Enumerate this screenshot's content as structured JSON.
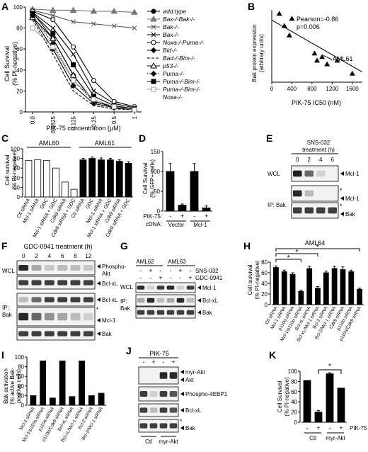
{
  "panels": {
    "A": {
      "letter": "A",
      "ylabel": "Cell Survival",
      "ylabel2": "(% PI-negative)",
      "xlabel": "PIK-75 concentration (µM)",
      "yticks": [
        "0",
        "20",
        "40",
        "60",
        "80",
        "100"
      ],
      "xticks": [
        "0.0",
        "0.0625",
        "0.125",
        "0.25",
        "0.5",
        "1"
      ],
      "legend": [
        "wild type",
        "Bax-/-Bak-/-",
        "Bak-/-",
        "Bax-/-",
        "Noxa-/-Puma-/-",
        "Bid-/-",
        "Bad-/-Bim-/-",
        "p53-/-",
        "Puma-/-",
        "Puma-/-Bim-/-",
        "Puma-/-Bim-/-",
        "Noxa-/-"
      ]
    },
    "B": {
      "letter": "B",
      "ylabel": "Bak protein expression",
      "ylabel2": "(arbitrary units)",
      "xlabel": "PIK-75 IC50 (nM)",
      "annot1": "Pearson=-0.86",
      "annot2": "p=0.006",
      "callout": "AML61",
      "xticks": [
        "0",
        "400",
        "800",
        "1200",
        "1600"
      ]
    },
    "C": {
      "letter": "C",
      "ylabel": "Cell survival",
      "ylabel2": "(% PI-negative)",
      "group1": "AML60",
      "group2": "AML61",
      "yticks": [
        "0",
        "20",
        "40",
        "60",
        "80",
        "100"
      ],
      "cats": [
        "Ctl siRNA",
        "Mcl-1 siRNA",
        "GDC",
        "Mcl-1 siRNA + GDC",
        "Cdk9 siRNA",
        "Cdk9 siRNA + GDC",
        "Ctl siRNA",
        "GDC",
        "Mcl-1 siRNA",
        "Mcl-1 siRNA + GDC",
        "Cdk9 siRNA",
        "Cdk9 siRNA + GDC"
      ]
    },
    "D": {
      "letter": "D",
      "ylabel": "Cell Survival",
      "ylabel2": "(% GFP+ cells)",
      "yticks": [
        "0",
        "50",
        "100",
        "150"
      ],
      "row1label": "PIK-75:",
      "row2label": "cDNA:",
      "signs": [
        "-",
        "+",
        "-",
        "+"
      ],
      "cdna": [
        "Vector",
        "Mcl-1"
      ]
    },
    "E": {
      "letter": "E",
      "treat": "SNS-032",
      "treat2": "treatment (h)",
      "times": [
        "0",
        "2",
        "4",
        "6"
      ],
      "wcl": "WCL",
      "ip": "IP: Bak",
      "bands": [
        "Mcl-1",
        "Mcl-1",
        "Bak"
      ],
      "star": "*"
    },
    "F": {
      "letter": "F",
      "treat": "GDC-0941 treatment (h)",
      "times": [
        "0",
        "2",
        "4",
        "6",
        "8",
        "12"
      ],
      "wcl": "WCL",
      "ip1": "IP:",
      "ip2": "Bak",
      "bands": [
        "Phospho-",
        "Akt",
        "Bcl-xL",
        "Bcl-xL",
        "Mcl-1",
        "Bak"
      ],
      "star": "*"
    },
    "G": {
      "letter": "G",
      "s1": "AML62",
      "s2": "AML63",
      "drug1": "SNS-032",
      "drug2": "GDC-0941",
      "wcl": "WCL",
      "ip1": "IP:",
      "ip2": "Bak",
      "bands": [
        "Mcl-1",
        "Bcl-xL",
        "Bak"
      ],
      "row1": [
        "-",
        "+",
        "-",
        "-",
        "+",
        "-"
      ],
      "row2": [
        "-",
        "-",
        "+",
        "-",
        "-",
        "+"
      ]
    },
    "H": {
      "letter": "H",
      "title": "AML64",
      "ylabel": "Cell survival",
      "ylabel2": "(% PI-negative)",
      "yticks": [
        "0",
        "20",
        "40",
        "60",
        "80"
      ],
      "cats": [
        "Ctl siRNA",
        "Mcl-1 siRNA",
        "p110α siRNA",
        "Mcl-1/p110α siRNA",
        "Bcl-xL siRNA",
        "Bcl-xL/Mcl-1 siRNA",
        "Bcl-2 siRNA",
        "Bcl-2/Mcl-1 siRNA",
        "Cdk9 siRNA",
        "p110α siRNA",
        "p110α/Cdk9 siRNA"
      ],
      "stars": [
        "*",
        "*",
        "*"
      ]
    },
    "I": {
      "letter": "I",
      "ylabel": "Bak activation",
      "ylabel2": "(% active Bak-",
      "ylabel3": "positive cells)",
      "yticks": [
        "0",
        "20",
        "40",
        "60",
        "80",
        "100"
      ],
      "cats": [
        "Mcl-1 siRNA",
        "Mcl-1/p110α siRNA",
        "p110α siRNA",
        "p110α/Cdk9 siRNA",
        "Bcl-xL siRNA",
        "Bcl-xL/Mcl-1 siRNA",
        "Bcl-2 siRNA",
        "Bcl-2/Mcl-1 siRNA"
      ]
    },
    "J": {
      "letter": "J",
      "drug": "PIK-75",
      "signs": [
        "-",
        "+",
        "-",
        "+"
      ],
      "groups": [
        "Ctl",
        "myr-Akt"
      ],
      "bands": [
        "myr-Akt",
        "Akt",
        "Phospho-4EBP1",
        "Bcl-xL",
        "Bak"
      ],
      "star": "*"
    },
    "K": {
      "letter": "K",
      "ylabel": "Cell Survival",
      "ylabel2": "(% PI-negative)",
      "yticks": [
        "0",
        "20",
        "40",
        "60",
        "80",
        "100"
      ],
      "signs": [
        "-",
        "+",
        "-",
        "+"
      ],
      "groups": [
        "Ctl",
        "myr-Akt"
      ],
      "druglabel": "PIK-75",
      "star": "*"
    }
  },
  "chart_data": [
    {
      "panel": "A",
      "type": "line",
      "x": [
        0,
        0.0625,
        0.125,
        0.25,
        0.5,
        1
      ],
      "ylim": [
        0,
        100
      ],
      "series": [
        {
          "name": "wild type",
          "values": [
            95,
            70,
            35,
            10,
            5,
            3
          ]
        },
        {
          "name": "Bax-/-Bak-/-",
          "values": [
            98,
            97,
            97,
            96,
            96,
            95
          ]
        },
        {
          "name": "Bak-/-",
          "values": [
            97,
            92,
            86,
            84,
            82,
            80
          ]
        },
        {
          "name": "Bax-/-",
          "values": [
            95,
            80,
            55,
            20,
            8,
            4
          ]
        },
        {
          "name": "Noxa-/-Puma-/-",
          "values": [
            96,
            88,
            62,
            30,
            10,
            5
          ]
        },
        {
          "name": "Bid-/-",
          "values": [
            90,
            60,
            25,
            8,
            4,
            2
          ]
        },
        {
          "name": "Bad-/-Bim-/-",
          "values": [
            88,
            55,
            20,
            6,
            3,
            2
          ]
        },
        {
          "name": "p53-/-",
          "values": [
            90,
            70,
            35,
            10,
            5,
            2
          ]
        },
        {
          "name": "Puma-/-",
          "values": [
            92,
            65,
            30,
            10,
            4,
            2
          ]
        },
        {
          "name": "Puma-/-Bim-/-",
          "values": [
            94,
            75,
            45,
            15,
            6,
            3
          ]
        },
        {
          "name": "Puma-/-Bim-/- Noxa-/-",
          "values": [
            80,
            62,
            30,
            12,
            5,
            2
          ]
        }
      ]
    },
    {
      "panel": "B",
      "type": "scatter",
      "xlim": [
        0,
        1800
      ],
      "points": [
        [
          150,
          95
        ],
        [
          250,
          78
        ],
        [
          350,
          65
        ],
        [
          400,
          88
        ],
        [
          850,
          40
        ],
        [
          900,
          30
        ],
        [
          1000,
          35
        ],
        [
          1100,
          25
        ],
        [
          1300,
          30
        ],
        [
          1600,
          12
        ]
      ]
    },
    {
      "panel": "C",
      "type": "bar",
      "ylim": [
        0,
        100
      ],
      "values": [
        76,
        77,
        76,
        60,
        31,
        16,
        77,
        80,
        77,
        77,
        74,
        70
      ],
      "errors": [
        0,
        0,
        0,
        0,
        0,
        0,
        3,
        3,
        4,
        3,
        3,
        3
      ]
    },
    {
      "panel": "D",
      "type": "bar",
      "ylim": [
        0,
        150
      ],
      "values": [
        100,
        15,
        100,
        8
      ],
      "errors": [
        20,
        3,
        20,
        5
      ]
    },
    {
      "panel": "H",
      "type": "bar",
      "ylim": [
        0,
        80
      ],
      "values": [
        70,
        62,
        57,
        25,
        68,
        31,
        60,
        68,
        66,
        62,
        29
      ],
      "errors": [
        3,
        3,
        3,
        2,
        4,
        3,
        3,
        4,
        5,
        3,
        2
      ]
    },
    {
      "panel": "I",
      "type": "bar",
      "ylim": [
        0,
        100
      ],
      "values": [
        20,
        92,
        15,
        92,
        18,
        92,
        20,
        25
      ]
    },
    {
      "panel": "K",
      "type": "bar",
      "ylim": [
        0,
        100
      ],
      "values": [
        82,
        20,
        95,
        67
      ],
      "errors": [
        0,
        3,
        2,
        0
      ]
    }
  ]
}
